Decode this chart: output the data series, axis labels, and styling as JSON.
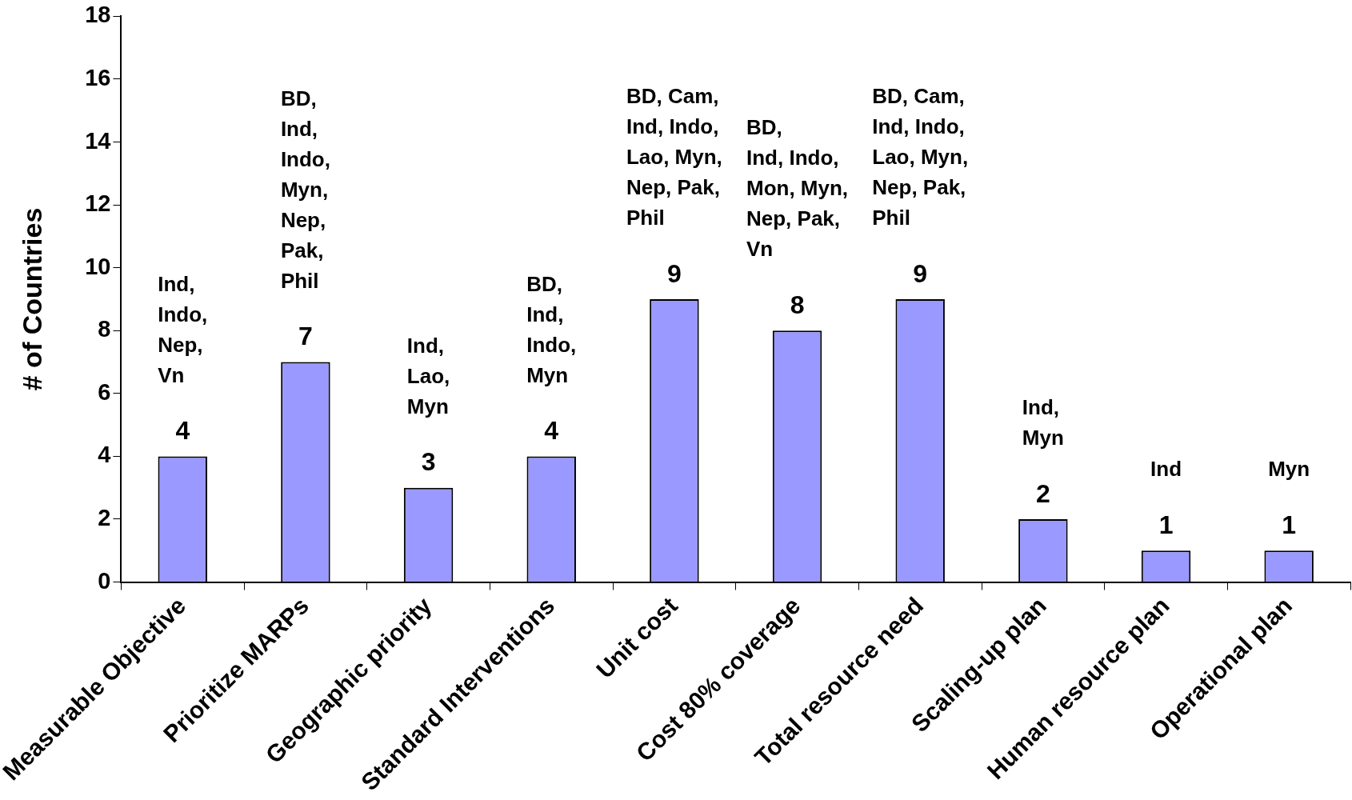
{
  "chart_data": {
    "type": "bar",
    "ylabel": "# of Countries",
    "categories": [
      "Measurable Objective",
      "Prioritize MARPs",
      "Geographic priority",
      "Standard Interventions",
      "Unit cost",
      "Cost 80% coverage",
      "Total resource need",
      "Scaling-up plan",
      "Human resource plan",
      "Operational plan"
    ],
    "values": [
      4,
      7,
      3,
      4,
      9,
      8,
      9,
      2,
      1,
      1
    ],
    "color": "#9999ff",
    "data_labels": true,
    "ylim": [
      0,
      18
    ],
    "yticks": [
      0,
      2,
      4,
      6,
      8,
      10,
      12,
      14,
      16,
      18
    ],
    "grid": false,
    "legend": false,
    "annotations": [
      "Ind,\nIndo,\nNep,\nVn",
      "BD,\nInd,\nIndo,\nMyn,\nNep,\nPak,\nPhil",
      "Ind,\nLao,\nMyn",
      "BD,\nInd,\nIndo,\nMyn",
      "BD, Cam,\nInd, Indo,\nLao, Myn,\nNep, Pak,\nPhil",
      "BD,\nInd, Indo,\nMon, Myn,\nNep, Pak,\nVn",
      "BD, Cam,\nInd, Indo,\nLao, Myn,\nNep, Pak,\nPhil",
      "Ind,\nMyn",
      "Ind",
      "Myn"
    ]
  }
}
